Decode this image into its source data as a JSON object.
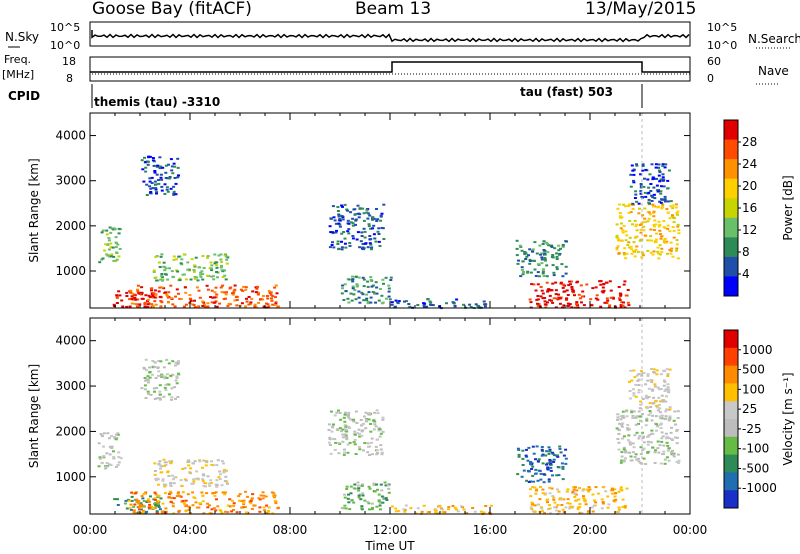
{
  "header": {
    "station": "Goose Bay (fitACF)",
    "beam": "Beam 13",
    "date": "13/May/2015"
  },
  "strip_labels": {
    "nsky": "N.Sky",
    "nsearch": "N.Search",
    "freq": "Freq.",
    "freq_unit": "[MHz]",
    "nave": "Nave",
    "cpid": "CPID",
    "nsky_ticks": [
      "10^5",
      "10^0"
    ],
    "nsearch_ticks": [
      "10^5",
      "10^0"
    ],
    "freq_ticks": [
      "18",
      "8"
    ],
    "nave_ticks": [
      "60",
      "0"
    ],
    "cpid_left": "themis (tau) -3310",
    "cpid_right": "tau (fast) 503"
  },
  "colors": {
    "power_scale": [
      "#0000ff",
      "#1f4fa8",
      "#2e8b57",
      "#6abf69",
      "#c8d400",
      "#ffd000",
      "#ff9000",
      "#ff4a00",
      "#e00000"
    ],
    "velocity_scale": [
      "#1a2fc8",
      "#1f6fb0",
      "#2e8b57",
      "#66bb44",
      "#bdbdbd",
      "#c8c8c8",
      "#ffc000",
      "#ff8c00",
      "#ff4000",
      "#e00000"
    ]
  },
  "chart_data": [
    {
      "type": "heatmap",
      "id": "power",
      "xlabel": "Time UT",
      "ylabel": "Slant Range [km]",
      "colorbar_label": "Power [dB]",
      "colorbar_ticks": [
        "28",
        "24",
        "20",
        "16",
        "12",
        "8",
        "4"
      ],
      "xlim": [
        0,
        24
      ],
      "ylim": [
        180,
        4500
      ],
      "yticks": [
        1000,
        2000,
        3000,
        4000
      ],
      "xticks": [
        "00:00",
        "04:00",
        "08:00",
        "12:00",
        "16:00",
        "20:00",
        "00:00"
      ],
      "regions": [
        {
          "t0": 0.3,
          "t1": 1.2,
          "r0": 1200,
          "r1": 2000,
          "level": 3
        },
        {
          "t0": 0.9,
          "t1": 2.8,
          "r0": 200,
          "r1": 600,
          "level": 8
        },
        {
          "t0": 2.0,
          "t1": 3.5,
          "r0": 2700,
          "r1": 3600,
          "level": 1
        },
        {
          "t0": 1.5,
          "t1": 7.5,
          "r0": 200,
          "r1": 700,
          "level": 7
        },
        {
          "t0": 2.5,
          "t1": 5.5,
          "r0": 800,
          "r1": 1400,
          "level": 3
        },
        {
          "t0": 9.5,
          "t1": 11.7,
          "r0": 1500,
          "r1": 2500,
          "level": 1
        },
        {
          "t0": 10.0,
          "t1": 12.0,
          "r0": 300,
          "r1": 900,
          "level": 2
        },
        {
          "t0": 12.0,
          "t1": 16.0,
          "r0": 200,
          "r1": 400,
          "level": 1
        },
        {
          "t0": 17.5,
          "t1": 21.5,
          "r0": 200,
          "r1": 800,
          "level": 8
        },
        {
          "t0": 17.0,
          "t1": 19.0,
          "r0": 900,
          "r1": 1700,
          "level": 2
        },
        {
          "t0": 21.0,
          "t1": 23.5,
          "r0": 1300,
          "r1": 2500,
          "level": 5
        },
        {
          "t0": 21.5,
          "t1": 23.2,
          "r0": 2500,
          "r1": 3400,
          "level": 1
        }
      ]
    },
    {
      "type": "heatmap",
      "id": "velocity",
      "xlabel": "Time UT",
      "ylabel": "Slant Range [km]",
      "colorbar_label": "Velocity [m s⁻¹]",
      "colorbar_ticks": [
        "1000",
        "500",
        "100",
        "25",
        "-25",
        "-100",
        "-500",
        "-1000"
      ],
      "xlim": [
        0,
        24
      ],
      "ylim": [
        180,
        4500
      ],
      "yticks": [
        1000,
        2000,
        3000,
        4000
      ],
      "xticks": [
        "00:00",
        "04:00",
        "08:00",
        "12:00",
        "16:00",
        "20:00",
        "00:00"
      ],
      "regions": [
        {
          "t0": 0.3,
          "t1": 1.2,
          "r0": 1200,
          "r1": 2000,
          "level": 4
        },
        {
          "t0": 0.9,
          "t1": 2.8,
          "r0": 200,
          "r1": 600,
          "level": 2
        },
        {
          "t0": 2.0,
          "t1": 3.5,
          "r0": 2700,
          "r1": 3600,
          "level": 4
        },
        {
          "t0": 1.5,
          "t1": 7.5,
          "r0": 200,
          "r1": 700,
          "level": 7
        },
        {
          "t0": 2.5,
          "t1": 5.5,
          "r0": 800,
          "r1": 1400,
          "level": 5
        },
        {
          "t0": 9.5,
          "t1": 11.7,
          "r0": 1500,
          "r1": 2500,
          "level": 4
        },
        {
          "t0": 10.0,
          "t1": 12.0,
          "r0": 300,
          "r1": 900,
          "level": 3
        },
        {
          "t0": 12.0,
          "t1": 16.0,
          "r0": 200,
          "r1": 400,
          "level": 6
        },
        {
          "t0": 17.5,
          "t1": 21.5,
          "r0": 200,
          "r1": 800,
          "level": 6
        },
        {
          "t0": 17.0,
          "t1": 19.0,
          "r0": 900,
          "r1": 1700,
          "level": 1
        },
        {
          "t0": 21.0,
          "t1": 23.5,
          "r0": 1300,
          "r1": 2500,
          "level": 4
        },
        {
          "t0": 21.5,
          "t1": 23.2,
          "r0": 2500,
          "r1": 3400,
          "level": 5
        }
      ]
    }
  ]
}
